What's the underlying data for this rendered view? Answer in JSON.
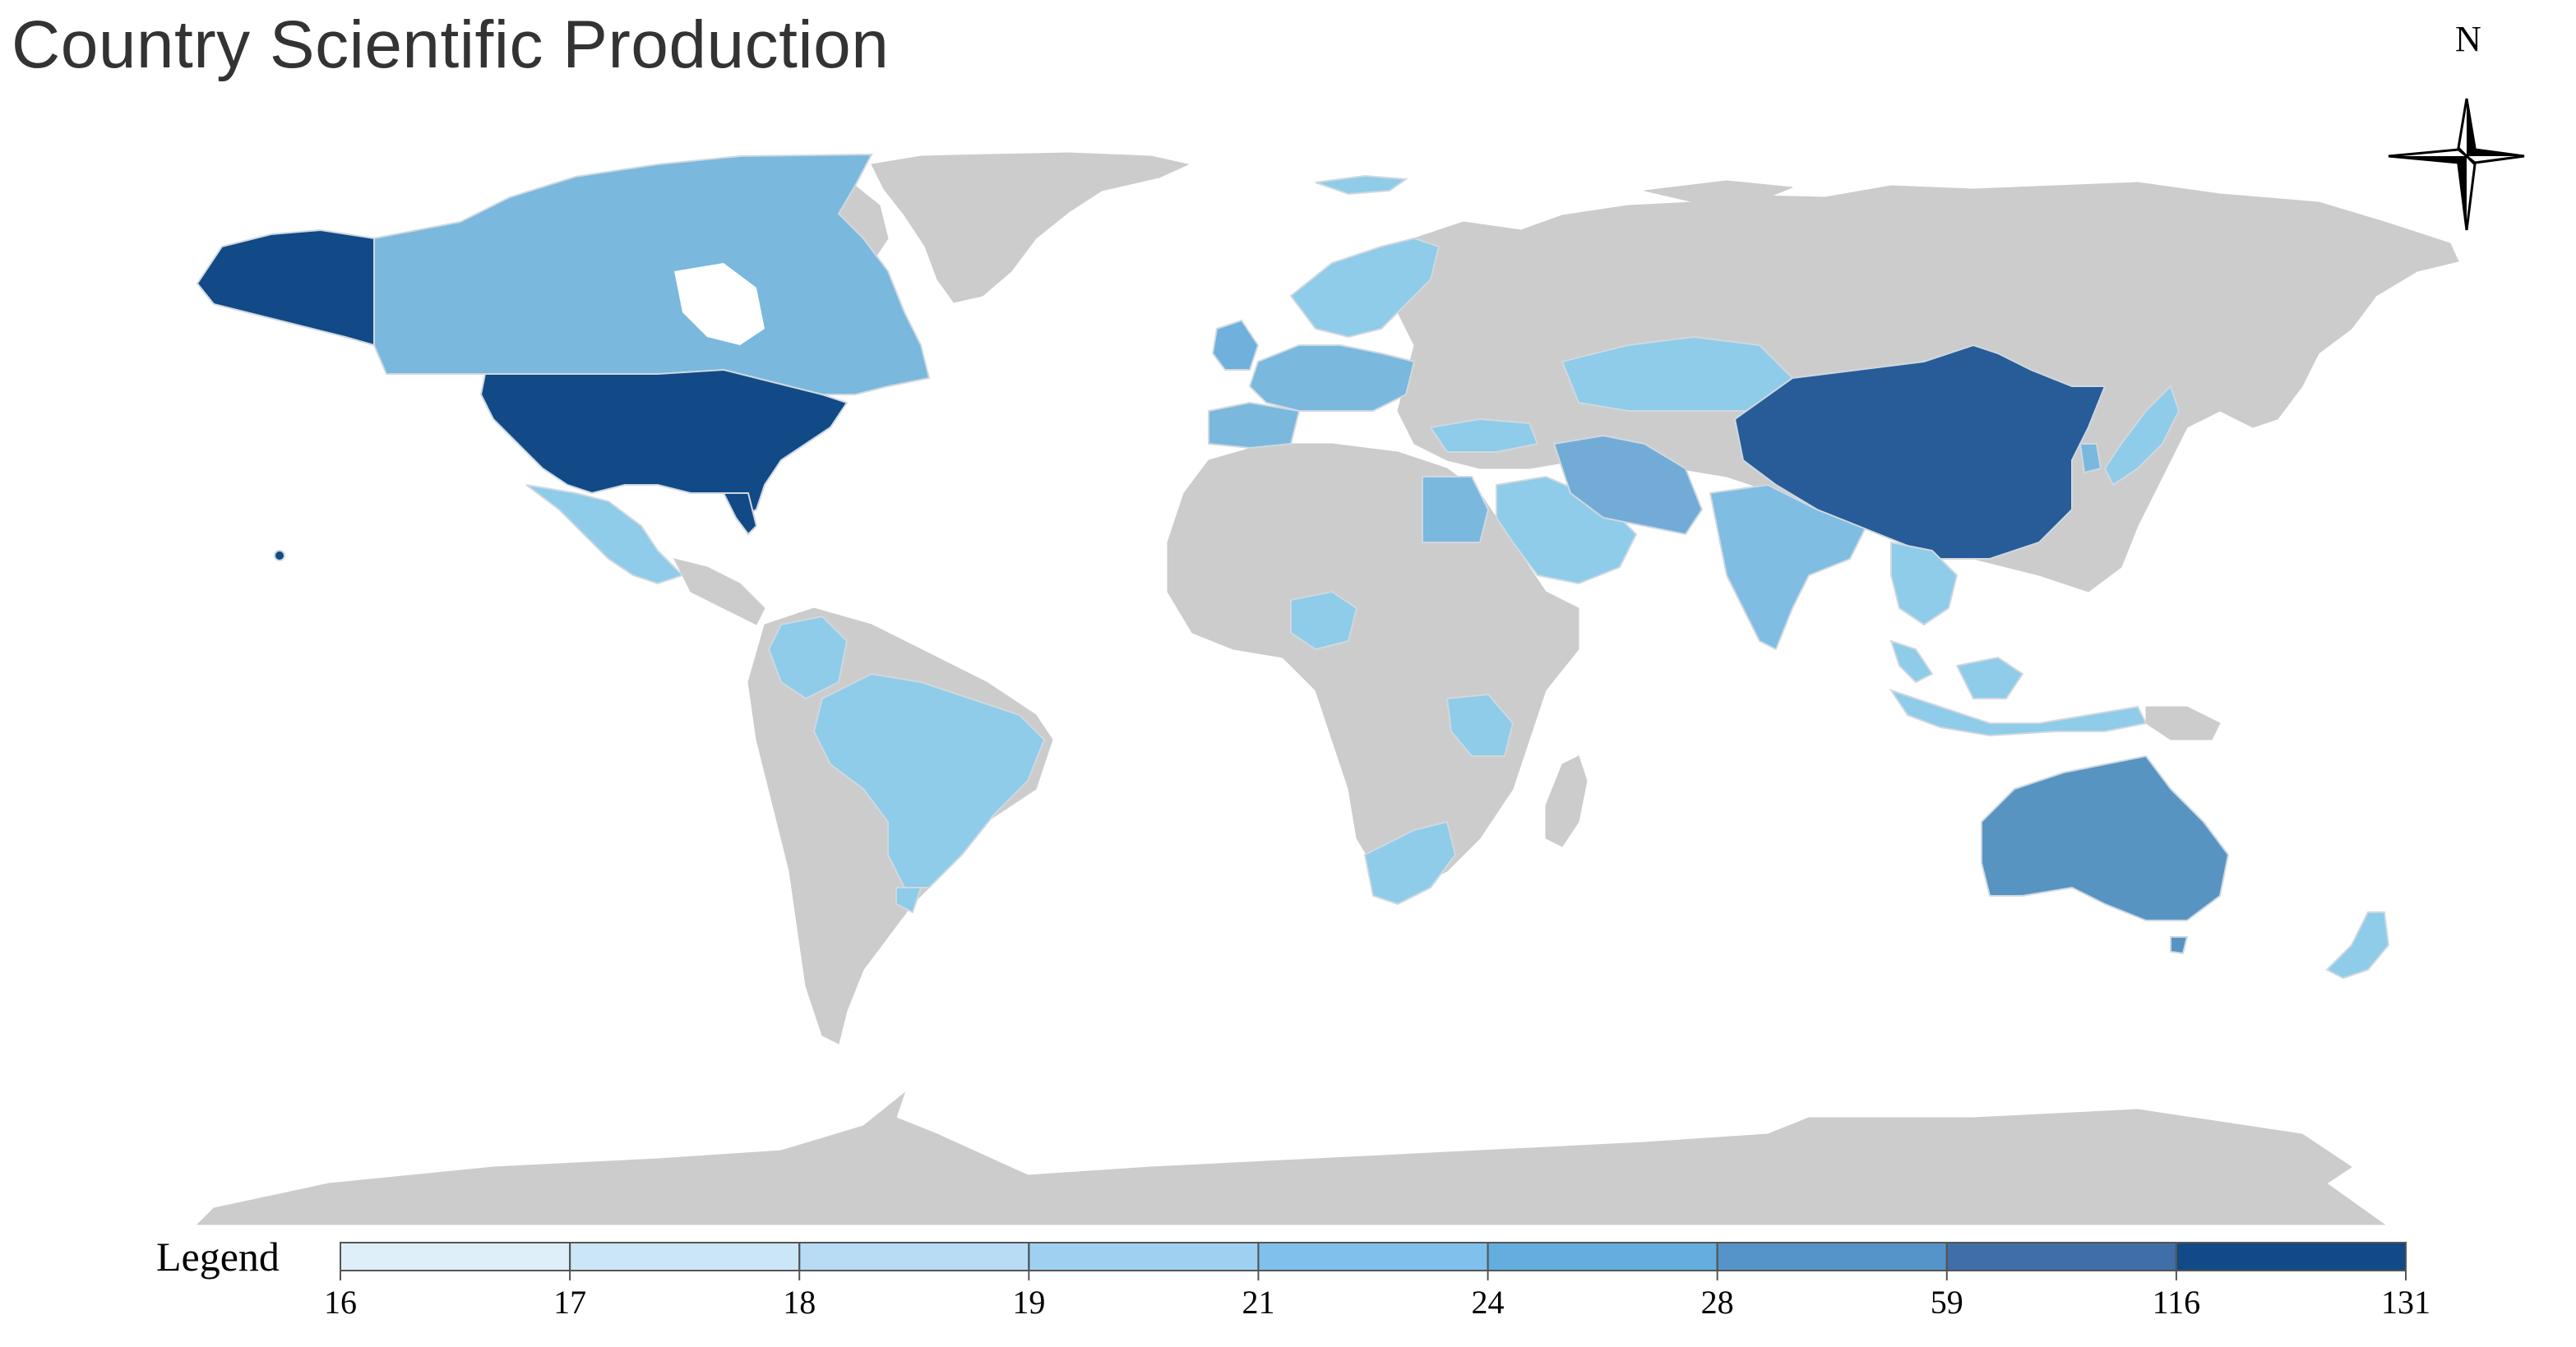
{
  "map": {
    "title": "Country Scientific Production",
    "compass_label": "N",
    "colors": {
      "no_data": "#cccccc",
      "ocean": "#ffffff"
    },
    "legend": {
      "title": "Legend",
      "thresholds": [
        "16",
        "17",
        "18",
        "19",
        "21",
        "24",
        "28",
        "59",
        "116",
        "131"
      ],
      "bin_colors": [
        "#deeff9",
        "#cbe6f7",
        "#b8dcf4",
        "#9fd0f1",
        "#7fc0ec",
        "#64addf",
        "#5494c8",
        "#3f6ea8",
        "#114a86"
      ]
    },
    "shaded_countries": [
      {
        "name": "United States",
        "color": "#114a86"
      },
      {
        "name": "Alaska",
        "color": "#114a86"
      },
      {
        "name": "China",
        "color": "#275c98"
      },
      {
        "name": "Australia",
        "color": "#5894c2"
      },
      {
        "name": "Canada",
        "color": "#7ab8de"
      },
      {
        "name": "Iran",
        "color": "#72acd6"
      },
      {
        "name": "India",
        "color": "#7fbde3"
      },
      {
        "name": "Mexico",
        "color": "#8ecce9"
      },
      {
        "name": "Brazil",
        "color": "#8ecce9"
      },
      {
        "name": "Colombia",
        "color": "#8ecce9"
      },
      {
        "name": "Egypt",
        "color": "#7ab8de"
      },
      {
        "name": "Saudi Arabia",
        "color": "#8ecce9"
      },
      {
        "name": "Kazakhstan",
        "color": "#8ecce9"
      },
      {
        "name": "Turkey",
        "color": "#8ecce9"
      },
      {
        "name": "Spain",
        "color": "#7ab8de"
      },
      {
        "name": "France",
        "color": "#7ab8de"
      },
      {
        "name": "Germany",
        "color": "#7ab8de"
      },
      {
        "name": "United Kingdom",
        "color": "#6fb0dc"
      },
      {
        "name": "Scandinavia",
        "color": "#8ecce9"
      },
      {
        "name": "Nigeria",
        "color": "#8ecce9"
      },
      {
        "name": "Tanzania",
        "color": "#8ecce9"
      },
      {
        "name": "South Africa",
        "color": "#8ecce9"
      },
      {
        "name": "Japan",
        "color": "#8ecce9"
      },
      {
        "name": "South Korea",
        "color": "#7ab8de"
      },
      {
        "name": "Vietnam",
        "color": "#8ecce9"
      },
      {
        "name": "Thailand",
        "color": "#8ecce9"
      },
      {
        "name": "Malaysia",
        "color": "#8ecce9"
      },
      {
        "name": "Indonesia",
        "color": "#8ecce9"
      },
      {
        "name": "New Zealand",
        "color": "#8ecce9"
      },
      {
        "name": "Iceland",
        "color": "#8ecce9"
      },
      {
        "name": "Uruguay",
        "color": "#8ecce9"
      },
      {
        "name": "Hawaii",
        "color": "#114a86"
      }
    ]
  }
}
